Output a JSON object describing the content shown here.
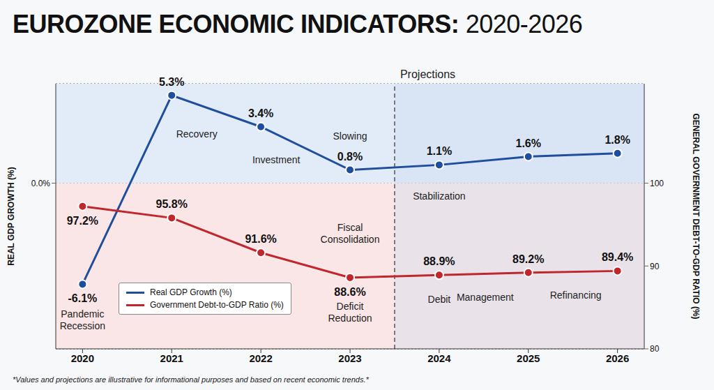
{
  "chart_data": {
    "type": "line",
    "title": "EUROZONE ECONOMIC INDICATORS: 2020-2026",
    "x": [
      2020,
      2021,
      2022,
      2023,
      2024,
      2025,
      2026
    ],
    "xlim": [
      2019.7,
      2026.3
    ],
    "xticks": [
      2020,
      2021,
      2022,
      2023,
      2024,
      2025,
      2026
    ],
    "ylabel": "REAL GDP GROWTH (%)",
    "y2label": "GENERAL GOVERNMENT DEBT-TO-GDP RATIO (%)",
    "ylim": [
      -10,
      6
    ],
    "yticks": [
      {
        "value": 0,
        "label": "0.0%"
      }
    ],
    "y2lim": [
      80,
      112
    ],
    "y2ticks": [
      80,
      90,
      100
    ],
    "grid": true,
    "legend": "lower left",
    "data_labels": true,
    "series": [
      {
        "name": "Real GDP Growth (%)",
        "color": "#1f4e9c",
        "marker": "circle",
        "values": [
          -6.1,
          5.3,
          3.4,
          0.8,
          1.1,
          1.6,
          1.8
        ],
        "value_labels": [
          "-6.1%",
          "5.3%",
          "3.4%",
          "0.8%",
          "1.1%",
          "1.6%",
          "1.8%"
        ]
      },
      {
        "name": "Government Debt-to-GDP Ratio (%)",
        "color": "#c0272d",
        "axis": "y2",
        "marker": "circle",
        "values": [
          97.2,
          95.8,
          91.6,
          88.6,
          88.9,
          89.2,
          89.4
        ],
        "value_labels": [
          "97.2%",
          "95.8%",
          "91.6%",
          "88.6%",
          "88.9%",
          "89.2%",
          "89.4%"
        ]
      }
    ],
    "reference_line": {
      "x": 2023.5,
      "label": "Projections",
      "line_style": "dashed"
    },
    "annotations": [
      {
        "text": "Recovery",
        "x": 2021,
        "series": "Real GDP Growth (%)"
      },
      {
        "text": "Investment",
        "x": 2022,
        "series": "Real GDP Growth (%)"
      },
      {
        "text": "Slowing",
        "x": 2023,
        "series": "Real GDP Growth (%)"
      },
      {
        "text": "Stabilization",
        "x": 2024,
        "series": "Real GDP Growth (%)"
      },
      {
        "text": "Pandemic Recession",
        "x": 2020,
        "series": "Real GDP Growth (%)"
      },
      {
        "text": "Fiscal Consolidation",
        "x": 2023,
        "series": "Government Debt-to-GDP Ratio (%)"
      },
      {
        "text": "Deficit Reduction",
        "x": 2023,
        "series": "Government Debt-to-GDP Ratio (%)"
      },
      {
        "text": "Debit",
        "x": 2024,
        "series": "Government Debt-to-GDP Ratio (%)"
      },
      {
        "text": "Management",
        "x": 2025,
        "series": "Government Debt-to-GDP Ratio (%)"
      },
      {
        "text": "Refinancing",
        "x": 2026,
        "series": "Government Debt-to-GDP Ratio (%)"
      }
    ],
    "footnote": "*Values and projections are illustrative for informational purposes and based on recent economic trends.*"
  }
}
